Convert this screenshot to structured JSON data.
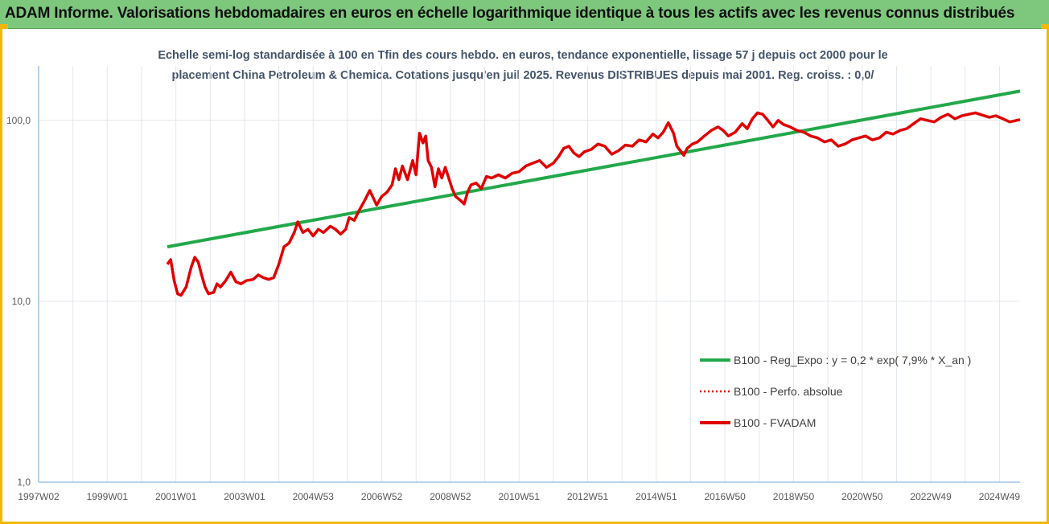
{
  "header": {
    "title": "ADAM Informe. Valorisations hebdomadaires en euros en échelle logarithmique identique à tous les actifs avec les revenus connus distribués"
  },
  "colors": {
    "banner": "#7ec87e",
    "frame": "#f2b705",
    "trend": "#22a84a",
    "fvadam": "#e00000",
    "perfo": "#e00000",
    "grid": "#e3e7ee",
    "axis": "#9dc3e6"
  },
  "chart_data": {
    "type": "line",
    "subtitle_lines": [
      "Echelle semi-log standardisée à 100 en Tfin des cours hebdo. en euros, tendance exponentielle, lissage 57 j depuis oct 2000 pour le",
      "placement China Petroleum & Chemica. Cotations jusqu'en juil 2025. Revenus DISTRIBUES depuis mai 2001. Reg. croiss. : 0,0/"
    ],
    "y_scale": "log",
    "ylim": [
      1,
      200
    ],
    "y_ticks": [
      {
        "value": 1,
        "label": "1,0"
      },
      {
        "value": 10,
        "label": "10,0"
      },
      {
        "value": 100,
        "label": "100,0"
      }
    ],
    "xlim": [
      1997.0,
      2025.6
    ],
    "x_ticks": [
      {
        "label": "1997W02",
        "year": 1997.0
      },
      {
        "label": "1999W01",
        "year": 1999.0
      },
      {
        "label": "2001W01",
        "year": 2001.0
      },
      {
        "label": "2003W01",
        "year": 2003.0
      },
      {
        "label": "2004W53",
        "year": 2005.0
      },
      {
        "label": "2006W52",
        "year": 2007.0
      },
      {
        "label": "2008W52",
        "year": 2009.0
      },
      {
        "label": "2010W51",
        "year": 2011.0
      },
      {
        "label": "2012W51",
        "year": 2013.0
      },
      {
        "label": "2014W51",
        "year": 2015.0
      },
      {
        "label": "2016W50",
        "year": 2017.0
      },
      {
        "label": "2018W50",
        "year": 2019.0
      },
      {
        "label": "2020W50",
        "year": 2021.0
      },
      {
        "label": "2022W49",
        "year": 2023.0
      },
      {
        "label": "2024W49",
        "year": 2025.0
      }
    ],
    "legend_position": "bottom-right",
    "series": [
      {
        "name": "B100 - Reg_Expo : y = 0,2 * exp( 7,9% *  X_an )",
        "style": "solid",
        "points": [
          [
            2000.75,
            20
          ],
          [
            2025.6,
            145
          ]
        ]
      },
      {
        "name": "B100 - Perfo. absolue",
        "style": "dotted",
        "points": []
      },
      {
        "name": "B100 - FVADAM",
        "style": "solid",
        "points": [
          [
            2000.75,
            16
          ],
          [
            2000.85,
            17
          ],
          [
            2000.95,
            13
          ],
          [
            2001.05,
            11
          ],
          [
            2001.15,
            10.8
          ],
          [
            2001.3,
            12
          ],
          [
            2001.45,
            15.5
          ],
          [
            2001.55,
            17.5
          ],
          [
            2001.65,
            16.5
          ],
          [
            2001.75,
            14
          ],
          [
            2001.85,
            12
          ],
          [
            2001.95,
            11
          ],
          [
            2002.1,
            11.2
          ],
          [
            2002.2,
            12.5
          ],
          [
            2002.3,
            12
          ],
          [
            2002.45,
            13
          ],
          [
            2002.6,
            14.5
          ],
          [
            2002.75,
            12.8
          ],
          [
            2002.9,
            12.5
          ],
          [
            2003.05,
            13
          ],
          [
            2003.25,
            13.2
          ],
          [
            2003.4,
            14
          ],
          [
            2003.55,
            13.5
          ],
          [
            2003.7,
            13.2
          ],
          [
            2003.85,
            13.5
          ],
          [
            2004.0,
            16
          ],
          [
            2004.15,
            20
          ],
          [
            2004.3,
            21
          ],
          [
            2004.45,
            24
          ],
          [
            2004.55,
            27.5
          ],
          [
            2004.7,
            24
          ],
          [
            2004.85,
            25
          ],
          [
            2005.0,
            23
          ],
          [
            2005.15,
            25
          ],
          [
            2005.3,
            24
          ],
          [
            2005.5,
            26
          ],
          [
            2005.65,
            25
          ],
          [
            2005.8,
            23.5
          ],
          [
            2005.95,
            25
          ],
          [
            2006.05,
            29
          ],
          [
            2006.2,
            28
          ],
          [
            2006.35,
            32
          ],
          [
            2006.5,
            36
          ],
          [
            2006.65,
            41
          ],
          [
            2006.85,
            34
          ],
          [
            2007.0,
            38
          ],
          [
            2007.15,
            40
          ],
          [
            2007.3,
            44
          ],
          [
            2007.4,
            54
          ],
          [
            2007.5,
            47
          ],
          [
            2007.6,
            56
          ],
          [
            2007.75,
            47
          ],
          [
            2007.9,
            60
          ],
          [
            2008.0,
            50
          ],
          [
            2008.1,
            85
          ],
          [
            2008.2,
            75
          ],
          [
            2008.28,
            82
          ],
          [
            2008.35,
            60
          ],
          [
            2008.45,
            55
          ],
          [
            2008.55,
            43
          ],
          [
            2008.65,
            54
          ],
          [
            2008.75,
            48
          ],
          [
            2008.85,
            55
          ],
          [
            2008.95,
            48
          ],
          [
            2009.05,
            42
          ],
          [
            2009.15,
            38
          ],
          [
            2009.3,
            36
          ],
          [
            2009.4,
            34.5
          ],
          [
            2009.5,
            40
          ],
          [
            2009.6,
            44
          ],
          [
            2009.75,
            45
          ],
          [
            2009.9,
            42
          ],
          [
            2010.05,
            49
          ],
          [
            2010.2,
            48
          ],
          [
            2010.4,
            50
          ],
          [
            2010.6,
            48
          ],
          [
            2010.8,
            51
          ],
          [
            2011.0,
            52
          ],
          [
            2011.2,
            56
          ],
          [
            2011.4,
            58
          ],
          [
            2011.6,
            60
          ],
          [
            2011.8,
            55
          ],
          [
            2012.0,
            58
          ],
          [
            2012.15,
            63
          ],
          [
            2012.3,
            70
          ],
          [
            2012.45,
            72
          ],
          [
            2012.6,
            66
          ],
          [
            2012.75,
            63
          ],
          [
            2012.9,
            67
          ],
          [
            2013.1,
            69
          ],
          [
            2013.3,
            74
          ],
          [
            2013.5,
            72
          ],
          [
            2013.7,
            65
          ],
          [
            2013.9,
            68
          ],
          [
            2014.1,
            73
          ],
          [
            2014.3,
            72
          ],
          [
            2014.5,
            78
          ],
          [
            2014.7,
            76
          ],
          [
            2014.9,
            84
          ],
          [
            2015.05,
            80
          ],
          [
            2015.2,
            86
          ],
          [
            2015.35,
            97
          ],
          [
            2015.5,
            85
          ],
          [
            2015.6,
            72
          ],
          [
            2015.7,
            68
          ],
          [
            2015.8,
            64
          ],
          [
            2015.9,
            70
          ],
          [
            2016.05,
            74
          ],
          [
            2016.2,
            76
          ],
          [
            2016.4,
            82
          ],
          [
            2016.6,
            88
          ],
          [
            2016.8,
            92
          ],
          [
            2016.95,
            88
          ],
          [
            2017.1,
            82
          ],
          [
            2017.3,
            86
          ],
          [
            2017.5,
            96
          ],
          [
            2017.65,
            90
          ],
          [
            2017.8,
            102
          ],
          [
            2017.95,
            110
          ],
          [
            2018.1,
            108
          ],
          [
            2018.25,
            100
          ],
          [
            2018.4,
            92
          ],
          [
            2018.55,
            100
          ],
          [
            2018.7,
            95
          ],
          [
            2018.9,
            92
          ],
          [
            2019.1,
            88
          ],
          [
            2019.3,
            86
          ],
          [
            2019.5,
            82
          ],
          [
            2019.7,
            80
          ],
          [
            2019.9,
            76
          ],
          [
            2020.1,
            78
          ],
          [
            2020.3,
            72
          ],
          [
            2020.5,
            74
          ],
          [
            2020.7,
            78
          ],
          [
            2020.9,
            80
          ],
          [
            2021.1,
            82
          ],
          [
            2021.3,
            78
          ],
          [
            2021.5,
            80
          ],
          [
            2021.7,
            86
          ],
          [
            2021.9,
            84
          ],
          [
            2022.1,
            88
          ],
          [
            2022.3,
            90
          ],
          [
            2022.5,
            96
          ],
          [
            2022.7,
            102
          ],
          [
            2022.9,
            100
          ],
          [
            2023.1,
            98
          ],
          [
            2023.3,
            104
          ],
          [
            2023.5,
            108
          ],
          [
            2023.7,
            102
          ],
          [
            2023.9,
            106
          ],
          [
            2024.1,
            108
          ],
          [
            2024.3,
            110
          ],
          [
            2024.5,
            107
          ],
          [
            2024.7,
            104
          ],
          [
            2024.9,
            106
          ],
          [
            2025.1,
            102
          ],
          [
            2025.3,
            98
          ],
          [
            2025.5,
            100
          ],
          [
            2025.6,
            101
          ]
        ]
      }
    ]
  }
}
